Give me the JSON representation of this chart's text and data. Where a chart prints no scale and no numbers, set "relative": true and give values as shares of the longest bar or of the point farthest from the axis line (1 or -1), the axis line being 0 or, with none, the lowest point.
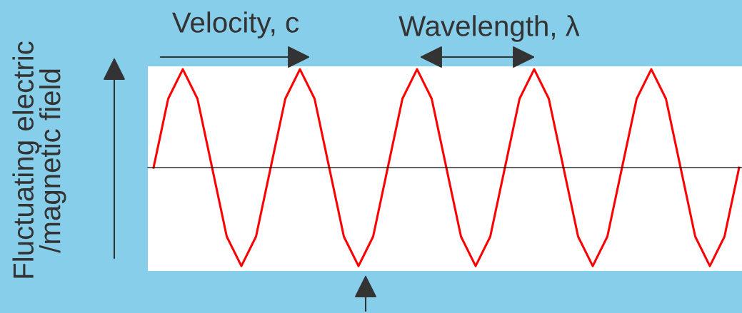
{
  "chart_data": {
    "type": "line",
    "relative": true,
    "ylabel": "Fluctuating electric\n/magnetic field",
    "annotations": [
      "Velocity, c",
      "Wavelength, λ"
    ],
    "categories": [
      null,
      null,
      null,
      null,
      null,
      null,
      null,
      null,
      null,
      null,
      null,
      null,
      null,
      null,
      null,
      null,
      null,
      null,
      null,
      null,
      null,
      null,
      null,
      null,
      null,
      null,
      null,
      null,
      null,
      null,
      null,
      null,
      null,
      null,
      null,
      null,
      null,
      null,
      null,
      null,
      null
    ],
    "series": [
      {
        "color": "#ff0000",
        "values": [
          0,
          0.7,
          1,
          0.7,
          0,
          -0.7,
          -1,
          -0.7,
          0,
          0.7,
          1,
          0.7,
          0,
          -0.7,
          -1,
          -0.7,
          0,
          0.7,
          1,
          0.7,
          0,
          -0.7,
          -1,
          -0.7,
          0,
          0.7,
          1,
          0.7,
          0,
          -0.7,
          -1,
          -0.7,
          0,
          0.7,
          1,
          0.7,
          0,
          -0.7,
          -1,
          -0.7,
          0
        ]
      }
    ],
    "marker": "none",
    "line_style": "solid"
  }
}
